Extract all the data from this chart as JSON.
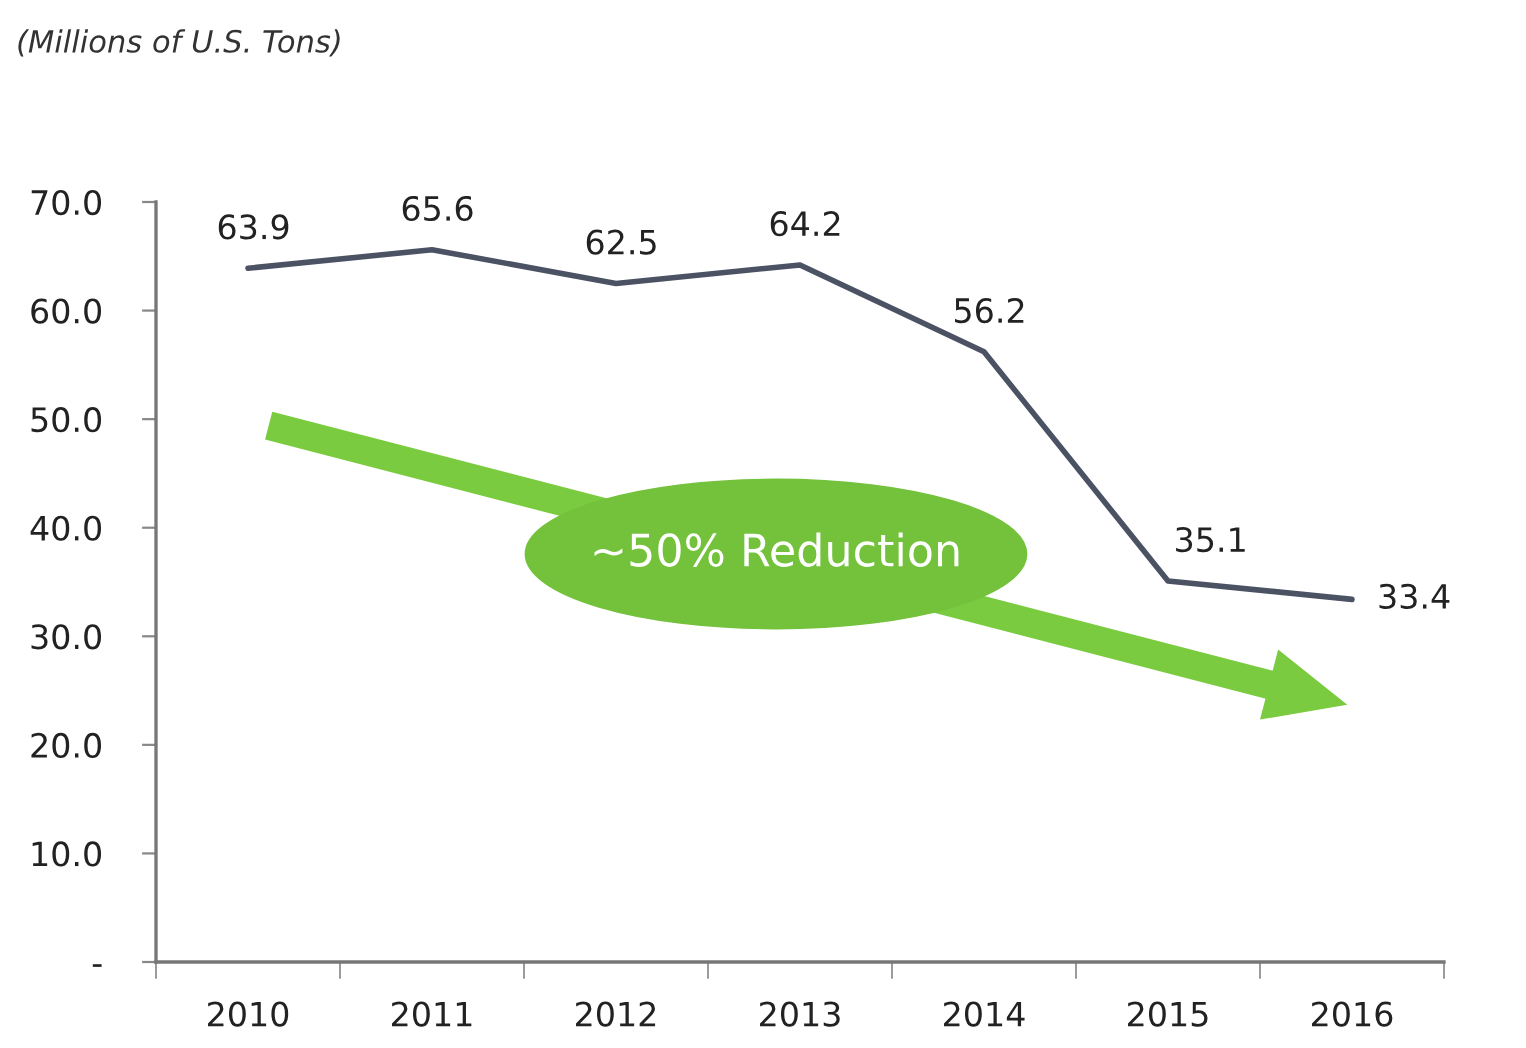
{
  "chart_data": {
    "type": "line",
    "ylabel": "(Millions of U.S. Tons)",
    "categories": [
      "2010",
      "2011",
      "2012",
      "2013",
      "2014",
      "2015",
      "2016"
    ],
    "series": [
      {
        "color": "#4b5263",
        "values": [
          63.9,
          65.6,
          62.5,
          64.2,
          56.2,
          35.1,
          33.4
        ]
      }
    ],
    "data_labels": true,
    "ylim": [
      0,
      70
    ],
    "yticks": [
      {
        "value": 0,
        "label": "-"
      },
      {
        "value": 10,
        "label": "10.0"
      },
      {
        "value": 20,
        "label": "20.0"
      },
      {
        "value": 30,
        "label": "30.0"
      },
      {
        "value": 40,
        "label": "40.0"
      },
      {
        "value": 50,
        "label": "50.0"
      },
      {
        "value": 60,
        "label": "60.0"
      },
      {
        "value": 70,
        "label": "70.0"
      }
    ],
    "annotations": [
      "~50% Reduction"
    ]
  }
}
